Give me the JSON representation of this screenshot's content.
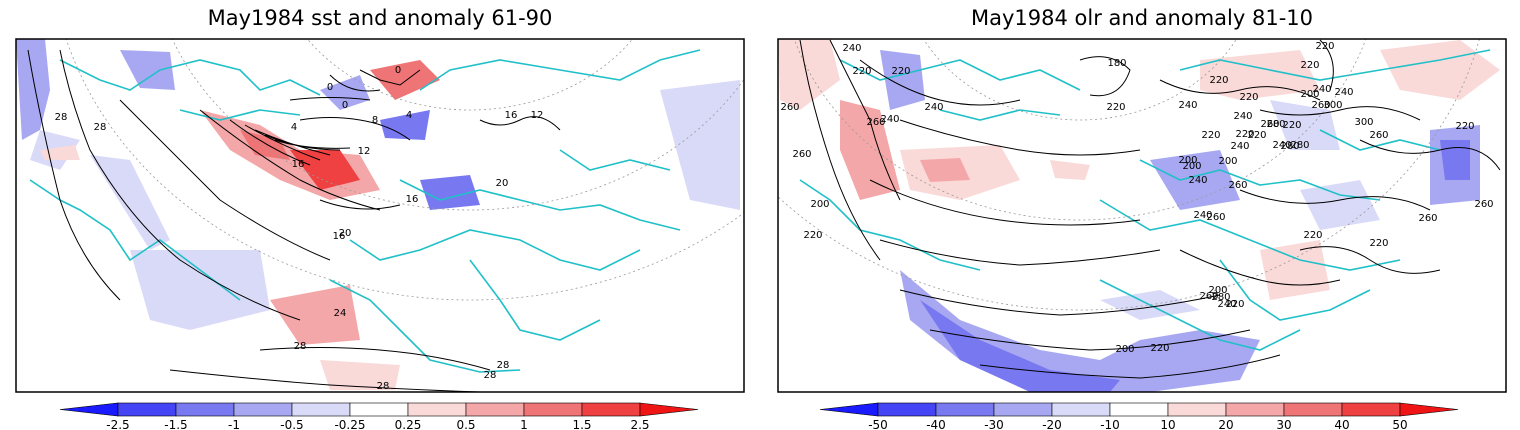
{
  "chart_data": [
    {
      "type": "heatmap",
      "title": "May1984 sst and anomaly 61-90",
      "contour_labels": [
        "28",
        "28",
        "4",
        "0",
        "0",
        "0",
        "8",
        "4",
        "12",
        "16",
        "16",
        "16",
        "12",
        "16",
        "20",
        "20",
        "24",
        "28",
        "28",
        "28",
        "28"
      ],
      "colorbar": {
        "ticks": [
          "-2.5",
          "-1.5",
          "-1",
          "-0.5",
          "-0.25",
          "0.25",
          "0.5",
          "1",
          "1.5",
          "2.5"
        ],
        "colors": [
          "#1a1aff",
          "#4545f5",
          "#7878f0",
          "#a8a8f2",
          "#d9daf8",
          "#ffffff",
          "#fad9d9",
          "#f4a7a8",
          "#ef7475",
          "#ef4142",
          "#f01515"
        ]
      }
    },
    {
      "type": "heatmap",
      "title": "May1984 olr and anomaly 81-10",
      "contour_labels": [
        "260",
        "240",
        "220",
        "220",
        "240",
        "240",
        "260",
        "260",
        "180",
        "220",
        "220",
        "240",
        "220",
        "220",
        "240",
        "240",
        "260",
        "200",
        "220",
        "240",
        "220",
        "220",
        "200",
        "280",
        "300",
        "300",
        "220",
        "280",
        "240",
        "220",
        "240",
        "260",
        "260",
        "260",
        "260",
        "220",
        "200",
        "280",
        "260",
        "240",
        "260",
        "200",
        "220",
        "240",
        "200",
        "220",
        "220",
        "200",
        "220",
        "240",
        "260",
        "280",
        "200",
        "220"
      ],
      "colorbar": {
        "ticks": [
          "-50",
          "-40",
          "-30",
          "-20",
          "-10",
          "10",
          "20",
          "30",
          "40",
          "50"
        ],
        "colors": [
          "#1a1aff",
          "#4545f5",
          "#7878f0",
          "#a8a8f2",
          "#d9daf8",
          "#ffffff",
          "#fad9d9",
          "#f4a7a8",
          "#ef7475",
          "#ef4142",
          "#f01515"
        ]
      }
    }
  ]
}
